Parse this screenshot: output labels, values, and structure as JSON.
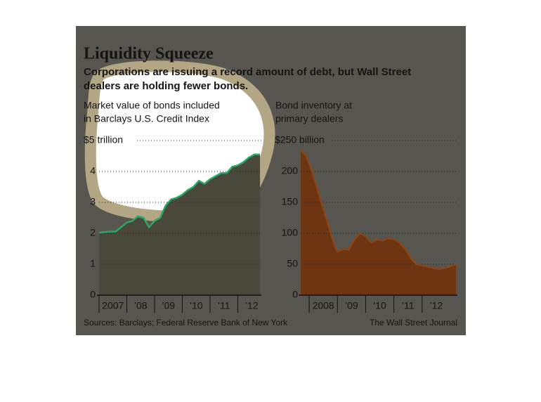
{
  "title": "Liquidity Squeeze",
  "subtitle": [
    "Corporations are issuing a record amount of debt, but Wall Street",
    "dealers are holding fewer bonds."
  ],
  "source": "Sources: Barclays; Federal Reserve Bank of New York",
  "credit": "The Wall Street Journal",
  "chart_data": [
    {
      "type": "area",
      "label": [
        "Market value of bonds included",
        "in Barclays U.S. Credit Index"
      ],
      "x": [
        2007.0,
        2007.3,
        2007.6,
        2007.8,
        2008.0,
        2008.2,
        2008.4,
        2008.6,
        2008.8,
        2009.0,
        2009.2,
        2009.4,
        2009.6,
        2009.8,
        2010.0,
        2010.2,
        2010.4,
        2010.6,
        2010.8,
        2011.0,
        2011.2,
        2011.4,
        2011.6,
        2011.8,
        2012.0,
        2012.2,
        2012.4,
        2012.6,
        2012.8
      ],
      "values": [
        2.02,
        2.05,
        2.06,
        2.2,
        2.35,
        2.4,
        2.55,
        2.5,
        2.2,
        2.4,
        2.5,
        2.9,
        3.1,
        3.15,
        3.25,
        3.4,
        3.5,
        3.7,
        3.6,
        3.75,
        3.85,
        3.95,
        3.95,
        4.15,
        4.2,
        4.3,
        4.45,
        4.55,
        4.55
      ],
      "color": "#2aa866",
      "fill": "#4a483a",
      "xlim": [
        2007,
        2012.85
      ],
      "xticks": [
        {
          "value": 2007,
          "label": "2007"
        },
        {
          "value": 2008,
          "label": "’08"
        },
        {
          "value": 2009,
          "label": "’09"
        },
        {
          "value": 2010,
          "label": "’10"
        },
        {
          "value": 2011,
          "label": "’11"
        },
        {
          "value": 2012,
          "label": "’12"
        }
      ],
      "ylim": [
        0,
        5
      ],
      "yticks": [
        0,
        1,
        2,
        3,
        4,
        {
          "value": 5,
          "label": "$5 trillion"
        }
      ],
      "grid": true
    },
    {
      "type": "area",
      "label": [
        "Bond inventory at",
        "primary dealers"
      ],
      "x": [
        2007.7,
        2007.9,
        2008.1,
        2008.3,
        2008.5,
        2008.7,
        2008.9,
        2009.0,
        2009.2,
        2009.4,
        2009.6,
        2009.8,
        2010.0,
        2010.2,
        2010.4,
        2010.6,
        2010.8,
        2011.0,
        2011.2,
        2011.4,
        2011.6,
        2011.8,
        2012.0,
        2012.3,
        2012.6,
        2012.9,
        2013.2
      ],
      "values": [
        235,
        225,
        200,
        170,
        140,
        110,
        80,
        70,
        75,
        73,
        90,
        100,
        95,
        85,
        90,
        88,
        92,
        90,
        85,
        75,
        60,
        50,
        48,
        45,
        42,
        45,
        50
      ],
      "color": "#8a4518",
      "fill": "#6e3512",
      "xlim": [
        2007.7,
        2013.25
      ],
      "xticks": [
        {
          "value": 2008,
          "label": "2008"
        },
        {
          "value": 2009,
          "label": "’09"
        },
        {
          "value": 2010,
          "label": "’10"
        },
        {
          "value": 2011,
          "label": "’11"
        },
        {
          "value": 2012,
          "label": "’12"
        }
      ],
      "ylim": [
        0,
        250
      ],
      "yticks": [
        0,
        50,
        100,
        150,
        200,
        {
          "value": 250,
          "label": "$250 billion"
        }
      ],
      "grid": true
    }
  ]
}
